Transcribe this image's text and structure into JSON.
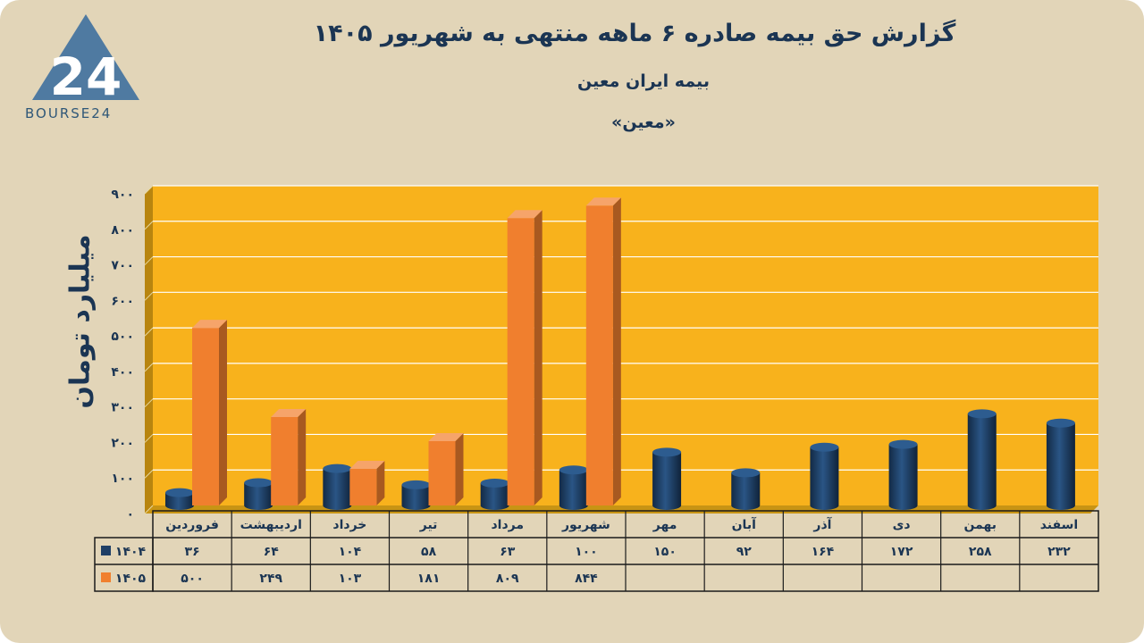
{
  "title": "گزارش  حق بیمه صادره ۶ ماهه منتهی به شهریور ۱۴۰۵",
  "subtitle": "بیمه ایران معین",
  "ticker": "«معین»",
  "logo_text": "BOURSE24",
  "colors": {
    "series_1404": "#1f3f66",
    "series_1405": "#f07f2e",
    "plot_bg": "#f8b21c",
    "background": "#e2d5b8"
  },
  "chart_data": {
    "type": "bar",
    "ylabel": "میلیارد تومان",
    "ylim": [
      0,
      900
    ],
    "y_ticks": [
      "۰",
      "۱۰۰",
      "۲۰۰",
      "۳۰۰",
      "۴۰۰",
      "۵۰۰",
      "۶۰۰",
      "۷۰۰",
      "۸۰۰",
      "۹۰۰"
    ],
    "categories": [
      "فروردین",
      "اردیبهشت",
      "خرداد",
      "تیر",
      "مرداد",
      "شهریور",
      "مهر",
      "آبان",
      "آذر",
      "دی",
      "بهمن",
      "اسفند"
    ],
    "grid": true,
    "legend": "data-table-left",
    "series": [
      {
        "name": "۱۴۰۴",
        "values": [
          36,
          64,
          104,
          58,
          63,
          100,
          150,
          92,
          164,
          172,
          258,
          232
        ],
        "labels": [
          "۳۶",
          "۶۴",
          "۱۰۴",
          "۵۸",
          "۶۳",
          "۱۰۰",
          "۱۵۰",
          "۹۲",
          "۱۶۴",
          "۱۷۲",
          "۲۵۸",
          "۲۳۲"
        ]
      },
      {
        "name": "۱۴۰۵",
        "values": [
          500,
          249,
          103,
          181,
          809,
          844,
          null,
          null,
          null,
          null,
          null,
          null
        ],
        "labels": [
          "۵۰۰",
          "۲۴۹",
          "۱۰۳",
          "۱۸۱",
          "۸۰۹",
          "۸۴۴",
          "",
          "",
          "",
          "",
          "",
          ""
        ]
      }
    ]
  }
}
